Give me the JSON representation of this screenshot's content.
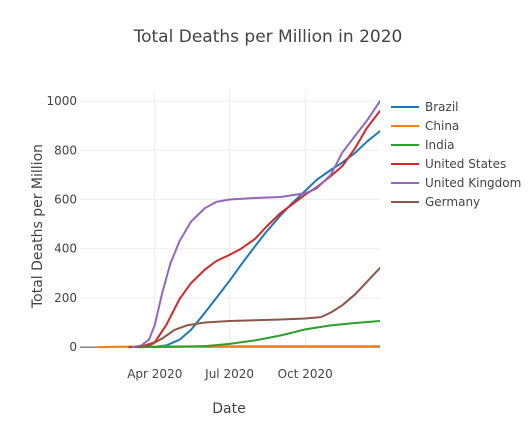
{
  "chart_data": {
    "type": "line",
    "title": "Total Deaths per Million in 2020",
    "xlabel": "Date",
    "ylabel": "Total Deaths per Million",
    "xlim": [
      "2020-01-01",
      "2020-12-31"
    ],
    "ylim": [
      -20,
      1045
    ],
    "x_ticks": [
      {
        "label": "Apr 2020",
        "date": "2020-04-01"
      },
      {
        "label": "Jul 2020",
        "date": "2020-07-01"
      },
      {
        "label": "Oct 2020",
        "date": "2020-10-01"
      }
    ],
    "y_ticks": [
      {
        "label": "0",
        "value": 0
      },
      {
        "label": "200",
        "value": 200
      },
      {
        "label": "400",
        "value": 400
      },
      {
        "label": "600",
        "value": 600
      },
      {
        "label": "800",
        "value": 800
      },
      {
        "label": "1000",
        "value": 1000
      }
    ],
    "grid": true,
    "legend_position": "right",
    "series": [
      {
        "name": "Brazil",
        "color": "#1f77b4",
        "points": [
          [
            "2020-03-17",
            0
          ],
          [
            "2020-03-31",
            1
          ],
          [
            "2020-04-15",
            7
          ],
          [
            "2020-05-01",
            30
          ],
          [
            "2020-05-15",
            70
          ],
          [
            "2020-06-01",
            140
          ],
          [
            "2020-06-15",
            200
          ],
          [
            "2020-07-01",
            270
          ],
          [
            "2020-07-15",
            335
          ],
          [
            "2020-08-01",
            410
          ],
          [
            "2020-08-15",
            470
          ],
          [
            "2020-09-01",
            535
          ],
          [
            "2020-09-15",
            585
          ],
          [
            "2020-10-01",
            635
          ],
          [
            "2020-10-15",
            680
          ],
          [
            "2020-11-01",
            720
          ],
          [
            "2020-11-15",
            750
          ],
          [
            "2020-12-01",
            790
          ],
          [
            "2020-12-15",
            835
          ],
          [
            "2020-12-31",
            878
          ]
        ]
      },
      {
        "name": "China",
        "color": "#ff7f0e",
        "points": [
          [
            "2020-01-22",
            0
          ],
          [
            "2020-03-01",
            2
          ],
          [
            "2020-06-01",
            3
          ],
          [
            "2020-09-01",
            3
          ],
          [
            "2020-12-31",
            3
          ]
        ]
      },
      {
        "name": "India",
        "color": "#2ca02c",
        "points": [
          [
            "2020-03-12",
            0
          ],
          [
            "2020-05-01",
            1
          ],
          [
            "2020-06-01",
            4
          ],
          [
            "2020-07-01",
            13
          ],
          [
            "2020-08-01",
            27
          ],
          [
            "2020-09-01",
            47
          ],
          [
            "2020-10-01",
            72
          ],
          [
            "2020-11-01",
            88
          ],
          [
            "2020-12-01",
            98
          ],
          [
            "2020-12-31",
            106
          ]
        ]
      },
      {
        "name": "United States",
        "color": "#d62728",
        "points": [
          [
            "2020-03-01",
            0
          ],
          [
            "2020-03-15",
            1
          ],
          [
            "2020-04-01",
            20
          ],
          [
            "2020-04-15",
            90
          ],
          [
            "2020-05-01",
            195
          ],
          [
            "2020-05-15",
            260
          ],
          [
            "2020-06-01",
            315
          ],
          [
            "2020-06-15",
            350
          ],
          [
            "2020-07-01",
            375
          ],
          [
            "2020-07-15",
            400
          ],
          [
            "2020-08-01",
            440
          ],
          [
            "2020-08-15",
            490
          ],
          [
            "2020-09-01",
            545
          ],
          [
            "2020-09-15",
            580
          ],
          [
            "2020-10-01",
            620
          ],
          [
            "2020-10-15",
            650
          ],
          [
            "2020-11-01",
            695
          ],
          [
            "2020-11-15",
            735
          ],
          [
            "2020-12-01",
            810
          ],
          [
            "2020-12-15",
            890
          ],
          [
            "2020-12-31",
            960
          ]
        ]
      },
      {
        "name": "United Kingdom",
        "color": "#9467bd",
        "points": [
          [
            "2020-03-05",
            0
          ],
          [
            "2020-03-15",
            5
          ],
          [
            "2020-03-25",
            30
          ],
          [
            "2020-04-01",
            90
          ],
          [
            "2020-04-10",
            220
          ],
          [
            "2020-04-20",
            340
          ],
          [
            "2020-05-01",
            430
          ],
          [
            "2020-05-15",
            510
          ],
          [
            "2020-06-01",
            565
          ],
          [
            "2020-06-15",
            590
          ],
          [
            "2020-07-01",
            600
          ],
          [
            "2020-08-01",
            606
          ],
          [
            "2020-09-01",
            610
          ],
          [
            "2020-10-01",
            625
          ],
          [
            "2020-10-15",
            645
          ],
          [
            "2020-11-01",
            700
          ],
          [
            "2020-11-15",
            790
          ],
          [
            "2020-12-01",
            860
          ],
          [
            "2020-12-15",
            920
          ],
          [
            "2020-12-31",
            1000
          ]
        ]
      },
      {
        "name": "Germany",
        "color": "#8c564b",
        "points": [
          [
            "2020-03-09",
            0
          ],
          [
            "2020-03-25",
            5
          ],
          [
            "2020-04-10",
            35
          ],
          [
            "2020-04-25",
            70
          ],
          [
            "2020-05-10",
            88
          ],
          [
            "2020-06-01",
            100
          ],
          [
            "2020-07-01",
            106
          ],
          [
            "2020-08-01",
            109
          ],
          [
            "2020-09-01",
            112
          ],
          [
            "2020-10-01",
            116
          ],
          [
            "2020-10-20",
            122
          ],
          [
            "2020-11-01",
            140
          ],
          [
            "2020-11-15",
            170
          ],
          [
            "2020-12-01",
            215
          ],
          [
            "2020-12-15",
            265
          ],
          [
            "2020-12-31",
            322
          ]
        ]
      }
    ]
  }
}
